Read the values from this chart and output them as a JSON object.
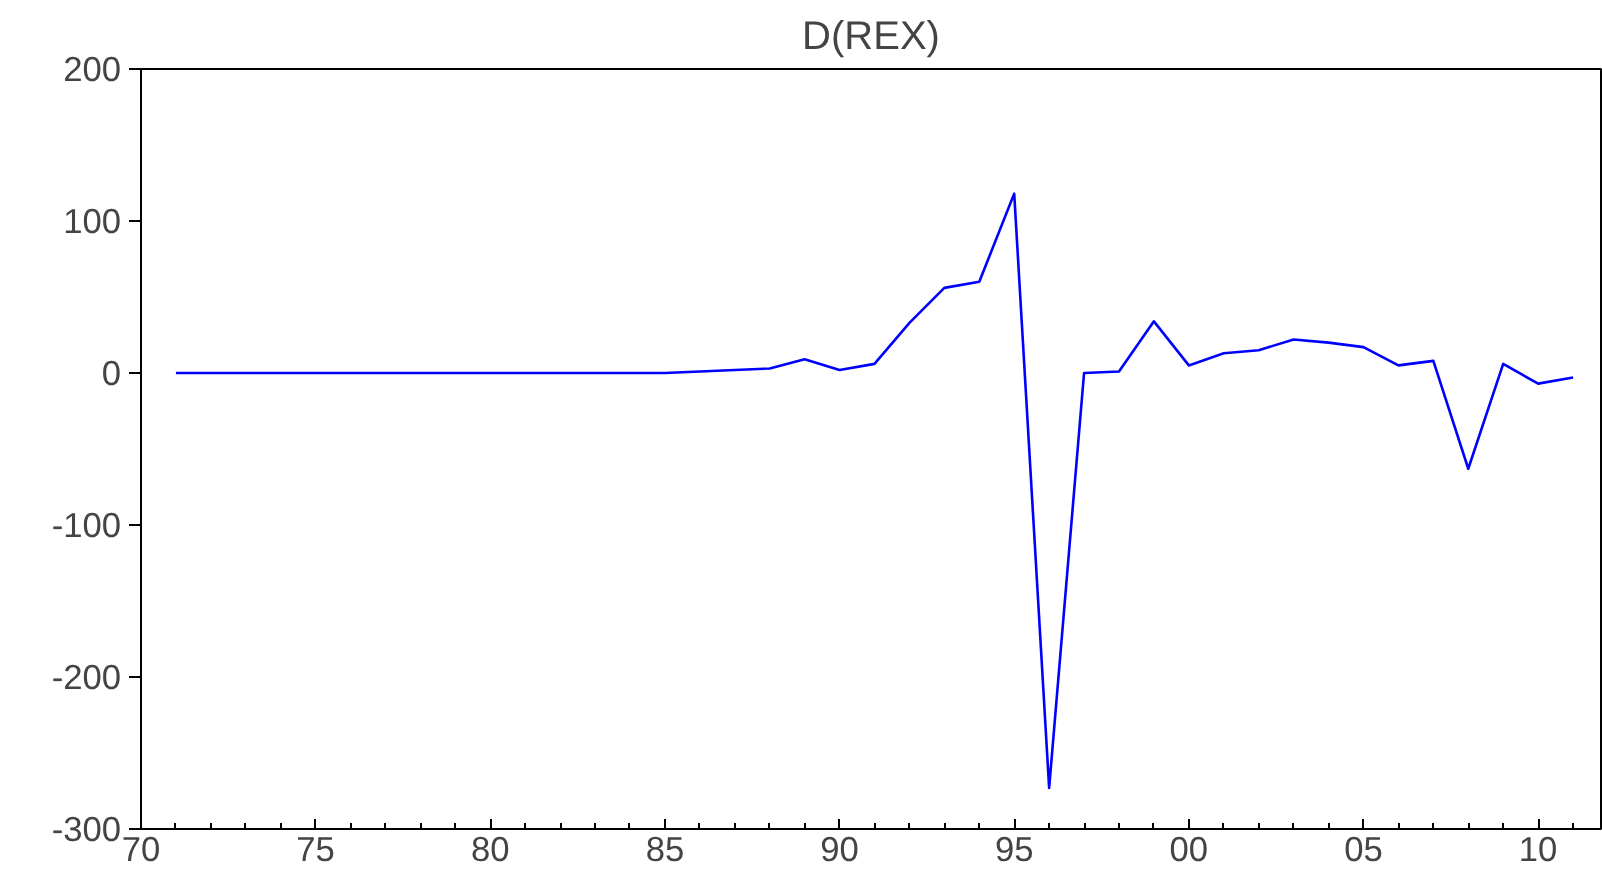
{
  "chart_data": {
    "type": "line",
    "title": "D(REX)",
    "x": [
      1971,
      1972,
      1973,
      1974,
      1975,
      1976,
      1977,
      1978,
      1979,
      1980,
      1981,
      1982,
      1983,
      1984,
      1985,
      1986,
      1987,
      1988,
      1989,
      1990,
      1991,
      1992,
      1993,
      1994,
      1995,
      1996,
      1997,
      1998,
      1999,
      2000,
      2001,
      2002,
      2003,
      2004,
      2005,
      2006,
      2007,
      2008,
      2009,
      2010,
      2011
    ],
    "series": [
      {
        "color": "#0000ff",
        "values": [
          0,
          0,
          0,
          0,
          0,
          0,
          0,
          0,
          0,
          0,
          0,
          0,
          0,
          0,
          0,
          1,
          2,
          3,
          9,
          2,
          6,
          33,
          56,
          60,
          118,
          -273,
          0,
          1,
          34,
          5,
          13,
          15,
          22,
          20,
          17,
          5,
          8,
          -63,
          6,
          -7,
          -3
        ]
      }
    ],
    "xlim": [
      1970,
      2011.8
    ],
    "ylim": [
      -300,
      200
    ],
    "xticks": [
      {
        "value": 1970,
        "label": "70"
      },
      {
        "value": 1975,
        "label": "75"
      },
      {
        "value": 1980,
        "label": "80"
      },
      {
        "value": 1985,
        "label": "85"
      },
      {
        "value": 1990,
        "label": "90"
      },
      {
        "value": 1995,
        "label": "95"
      },
      {
        "value": 2000,
        "label": "00"
      },
      {
        "value": 2005,
        "label": "05"
      },
      {
        "value": 2010,
        "label": "10"
      }
    ],
    "yticks": [
      -300,
      -200,
      -100,
      0,
      100,
      200
    ],
    "marker": "none",
    "line_style": "solid"
  }
}
